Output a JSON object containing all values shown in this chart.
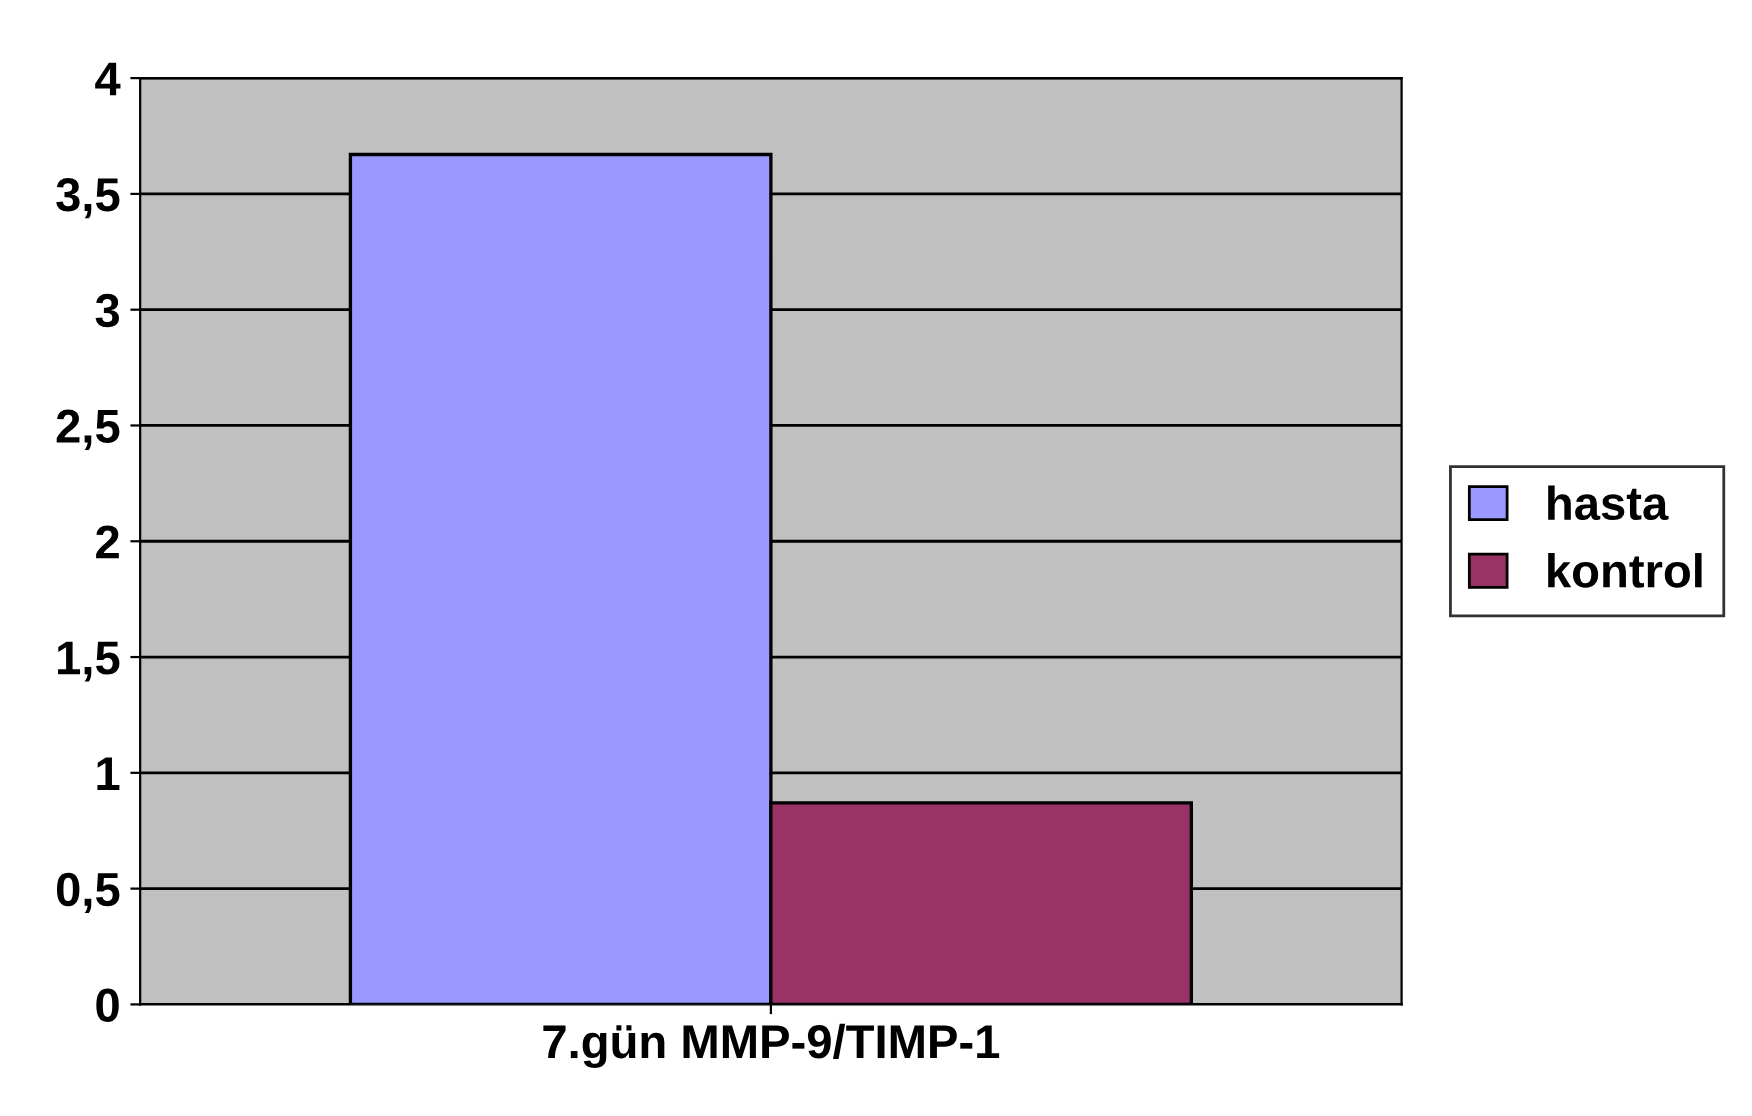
{
  "chart_data": {
    "type": "bar",
    "categories": [
      "7.gün MMP-9/TIMP-1"
    ],
    "series": [
      {
        "name": "hasta",
        "color": "#9999ff",
        "values": [
          3.67
        ]
      },
      {
        "name": "kontrol",
        "color": "#993366",
        "values": [
          0.87
        ]
      }
    ],
    "ylim": [
      0,
      4
    ],
    "yticks": [
      0,
      {
        "value": 0.5,
        "label": "0,5"
      },
      1,
      {
        "value": 1.5,
        "label": "1,5"
      },
      2,
      {
        "value": 2.5,
        "label": "2,5"
      },
      3,
      {
        "value": 3.5,
        "label": "3,5"
      },
      4
    ],
    "grid": "y",
    "legend": "right"
  }
}
